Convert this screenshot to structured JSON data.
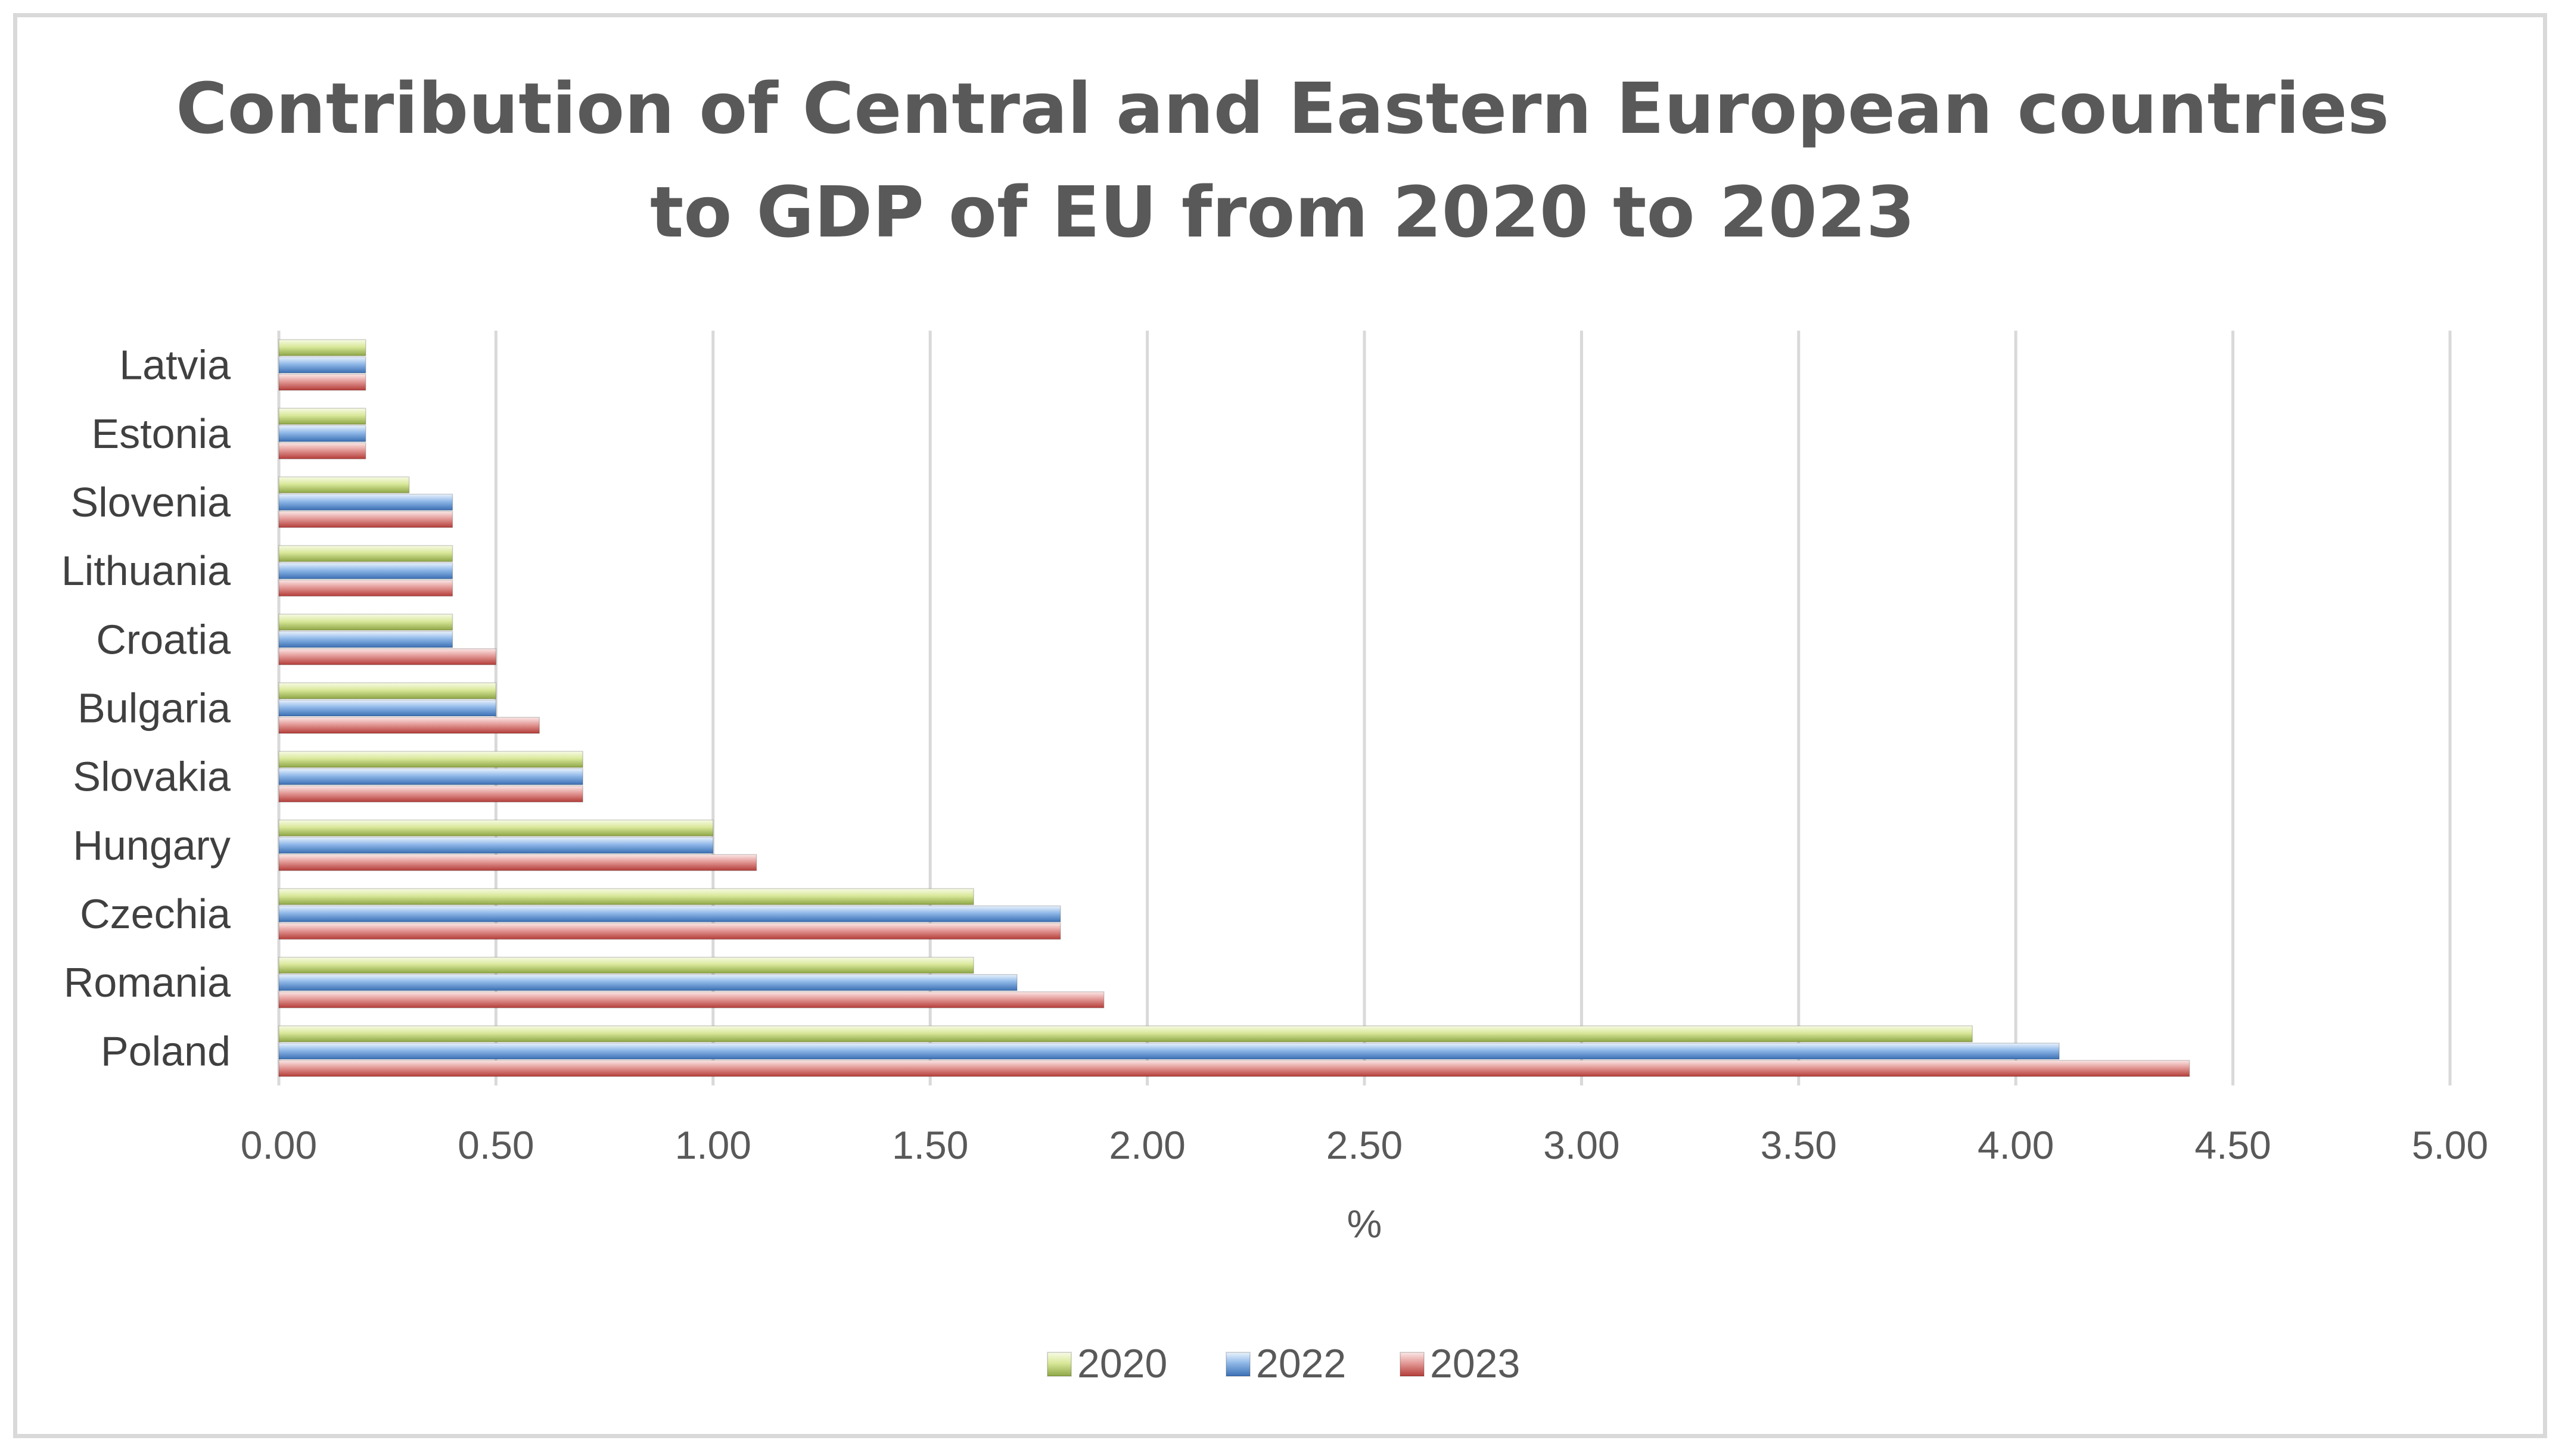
{
  "chart_data": {
    "type": "bar",
    "orientation": "horizontal",
    "title_lines": [
      "Contribution of Central and Eastern European countries",
      "to GDP of EU from 2020 to 2023"
    ],
    "categories": [
      "Latvia",
      "Estonia",
      "Slovenia",
      "Lithuania",
      "Croatia",
      "Bulgaria",
      "Slovakia",
      "Hungary",
      "Czechia",
      "Romania",
      "Poland"
    ],
    "series": [
      {
        "name": "2020",
        "color": "#d9e89a",
        "values": [
          0.2,
          0.2,
          0.3,
          0.4,
          0.4,
          0.5,
          0.7,
          1.0,
          1.6,
          1.6,
          3.9
        ]
      },
      {
        "name": "2022",
        "color": "#8fb8e8",
        "values": [
          0.2,
          0.2,
          0.4,
          0.4,
          0.4,
          0.5,
          0.7,
          1.0,
          1.8,
          1.7,
          4.1
        ]
      },
      {
        "name": "2023",
        "color": "#e39a97",
        "values": [
          0.2,
          0.2,
          0.4,
          0.4,
          0.5,
          0.6,
          0.7,
          1.1,
          1.8,
          1.9,
          4.4
        ]
      }
    ],
    "xlabel": "%",
    "ylabel": "",
    "xlim": [
      0,
      5
    ],
    "ticks": [
      "0.00",
      "0.50",
      "1.00",
      "1.50",
      "2.00",
      "2.50",
      "3.00",
      "3.50",
      "4.00",
      "4.50",
      "5.00"
    ],
    "grid": true,
    "legend": "bottom"
  }
}
